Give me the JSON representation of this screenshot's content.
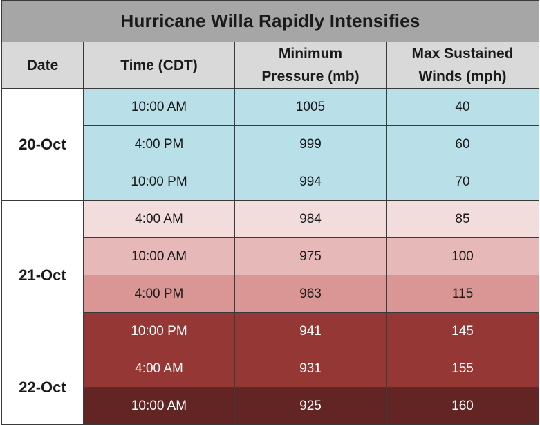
{
  "title": "Hurricane Willa Rapidly Intensifies",
  "headers": {
    "date": "Date",
    "time": "Time (CDT)",
    "pressure": [
      "Minimum",
      "Pressure (mb)"
    ],
    "winds": [
      "Max Sustained",
      "Winds (mph)"
    ]
  },
  "colors": {
    "title_bg": "#a6a6a6",
    "header_bg": "#d9d9d9",
    "oct20_rows": "#b9dfe8",
    "intensity_scale": [
      "#f2dcdc",
      "#e6b8b7",
      "#da9694",
      "#953735",
      "#632523"
    ]
  },
  "chart_data": {
    "type": "table",
    "title": "Hurricane Willa Rapidly Intensifies",
    "columns": [
      "Date",
      "Time (CDT)",
      "Minimum Pressure (mb)",
      "Max Sustained Winds (mph)"
    ],
    "groups": [
      {
        "date": "20-Oct",
        "rows": [
          {
            "time": "10:00 AM",
            "pressure": "1005",
            "winds": "40",
            "bg": "#b9dfe8",
            "dark": false
          },
          {
            "time": "4:00 PM",
            "pressure": "999",
            "winds": "60",
            "bg": "#b9dfe8",
            "dark": false
          },
          {
            "time": "10:00 PM",
            "pressure": "994",
            "winds": "70",
            "bg": "#b9dfe8",
            "dark": false
          }
        ]
      },
      {
        "date": "21-Oct",
        "rows": [
          {
            "time": "4:00 AM",
            "pressure": "984",
            "winds": "85",
            "bg": "#f2dcdc",
            "dark": false
          },
          {
            "time": "10:00 AM",
            "pressure": "975",
            "winds": "100",
            "bg": "#e6b8b7",
            "dark": false
          },
          {
            "time": "4:00 PM",
            "pressure": "963",
            "winds": "115",
            "bg": "#da9694",
            "dark": false
          },
          {
            "time": "10:00 PM",
            "pressure": "941",
            "winds": "145",
            "bg": "#953735",
            "dark": true
          }
        ]
      },
      {
        "date": "22-Oct",
        "rows": [
          {
            "time": "4:00 AM",
            "pressure": "931",
            "winds": "155",
            "bg": "#953735",
            "dark": true
          },
          {
            "time": "10:00 AM",
            "pressure": "925",
            "winds": "160",
            "bg": "#632523",
            "dark": true
          }
        ]
      }
    ]
  }
}
